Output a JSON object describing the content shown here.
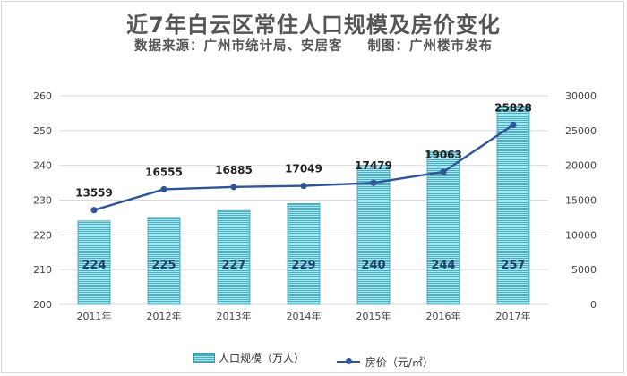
{
  "title": "近7年白云区常住人口规模及房价变化",
  "subtitle": {
    "source": "数据来源：广州市统计局、安居客",
    "credit": "制图：广州楼市发布"
  },
  "colors": {
    "bar": "#3fb3c6",
    "bar_light": "#b4e2ea",
    "line": "#2f5597",
    "grid": "#d9d9d9",
    "bar_label": "#1d4266"
  },
  "chart_data": {
    "type": "bar+line",
    "categories": [
      "2011年",
      "2012年",
      "2013年",
      "2014年",
      "2015年",
      "2016年",
      "2017年"
    ],
    "series": [
      {
        "name": "人口规模（万人）",
        "type": "bar",
        "axis": "left",
        "values": [
          224,
          225,
          227,
          229,
          240,
          244,
          257
        ]
      },
      {
        "name": "房价（元/㎡）",
        "type": "line",
        "axis": "right",
        "values": [
          13559,
          16555,
          16885,
          17049,
          17479,
          19063,
          25828
        ]
      }
    ],
    "y_left": {
      "range": [
        200,
        260
      ],
      "ticks": [
        "200",
        "210",
        "220",
        "230",
        "240",
        "250",
        "260"
      ]
    },
    "y_right": {
      "range": [
        0,
        30000
      ],
      "ticks": [
        "0",
        "5000",
        "10000",
        "15000",
        "20000",
        "25000",
        "30000"
      ]
    },
    "grid": true,
    "legend": "bottom"
  }
}
